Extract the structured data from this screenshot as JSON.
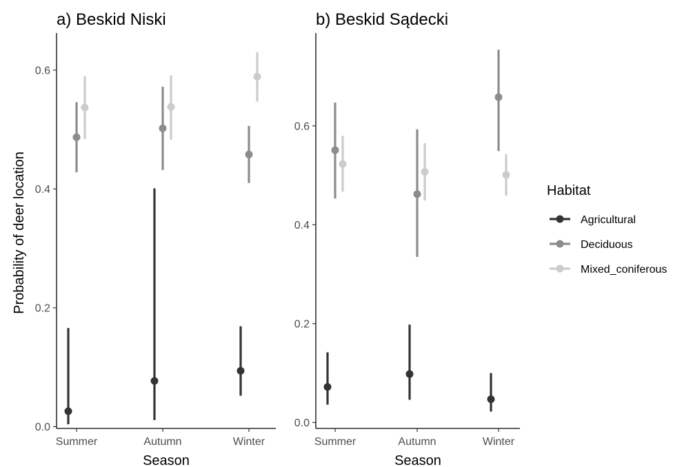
{
  "chart_data": [
    {
      "type": "scatter",
      "title": "a) Beskid Niski",
      "xlabel": "Season",
      "ylabel": "Probability of deer location",
      "categories": [
        "Summer",
        "Autumn",
        "Winter"
      ],
      "ylim": [
        -0.003,
        0.66
      ],
      "yticks": [
        "0.0",
        "0.2",
        "0.4",
        "0.6"
      ],
      "grid": false,
      "series": [
        {
          "name": "Agricultural",
          "color": "#333333",
          "values": [
            0.026,
            0.077,
            0.094
          ],
          "lower": [
            0.004,
            0.011,
            0.052
          ],
          "upper": [
            0.166,
            0.401,
            0.169
          ]
        },
        {
          "name": "Deciduous",
          "color": "#8c8c8c",
          "values": [
            0.487,
            0.502,
            0.458
          ],
          "lower": [
            0.428,
            0.432,
            0.41
          ],
          "upper": [
            0.546,
            0.572,
            0.506
          ]
        },
        {
          "name": "Mixed_coniferous",
          "color": "#cccccc",
          "values": [
            0.537,
            0.538,
            0.589
          ],
          "lower": [
            0.484,
            0.483,
            0.547
          ],
          "upper": [
            0.59,
            0.591,
            0.63
          ]
        }
      ]
    },
    {
      "type": "scatter",
      "title": "b) Beskid Sądecki",
      "xlabel": "Season",
      "ylabel": "",
      "categories": [
        "Summer",
        "Autumn",
        "Winter"
      ],
      "ylim": [
        -0.012,
        0.785
      ],
      "yticks": [
        "0.0",
        "0.2",
        "0.4",
        "0.6"
      ],
      "grid": false,
      "series": [
        {
          "name": "Agricultural",
          "color": "#333333",
          "values": [
            0.072,
            0.098,
            0.047
          ],
          "lower": [
            0.036,
            0.046,
            0.022
          ],
          "upper": [
            0.142,
            0.198,
            0.1
          ]
        },
        {
          "name": "Deciduous",
          "color": "#8c8c8c",
          "values": [
            0.551,
            0.462,
            0.658
          ],
          "lower": [
            0.453,
            0.335,
            0.549
          ],
          "upper": [
            0.647,
            0.593,
            0.754
          ]
        },
        {
          "name": "Mixed_coniferous",
          "color": "#cccccc",
          "values": [
            0.523,
            0.507,
            0.501
          ],
          "lower": [
            0.467,
            0.449,
            0.459
          ],
          "upper": [
            0.58,
            0.565,
            0.543
          ]
        }
      ]
    }
  ],
  "legend": {
    "title": "Habitat",
    "position": "right",
    "items": [
      {
        "label": "Agricultural",
        "color": "#333333"
      },
      {
        "label": "Deciduous",
        "color": "#8c8c8c"
      },
      {
        "label": "Mixed_coniferous",
        "color": "#cccccc"
      }
    ]
  }
}
